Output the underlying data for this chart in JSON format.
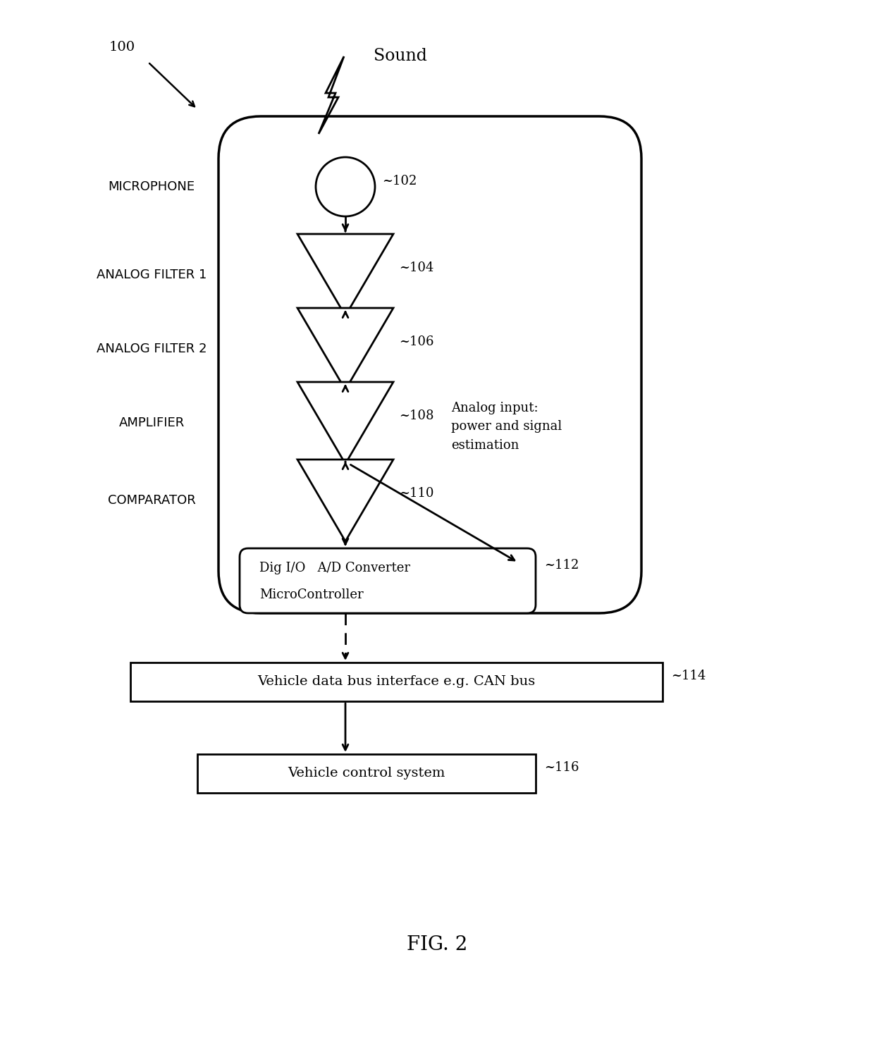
{
  "title": "FIG. 2",
  "background_color": "#ffffff",
  "fig_label": "100",
  "sound_label": "Sound",
  "box_112_label1": "Dig I/O   A/D Converter",
  "box_112_label2": "MicroController",
  "box_112_id": "~112",
  "box_114_label": "Vehicle data bus interface e.g. CAN bus",
  "box_114_id": "~114",
  "box_116_label": "Vehicle control system",
  "box_116_id": "~116",
  "analog_input_text": "Analog input:\npower and signal\nestimation",
  "ref_102": "~102",
  "ref_104": "~104",
  "ref_106": "~106",
  "ref_108": "~108",
  "ref_110": "~110",
  "label_microphone": "MICROPHONE",
  "label_af1": "ANALOG FILTER 1",
  "label_af2": "ANALOG FILTER 2",
  "label_amp": "AMPLIFIER",
  "label_comp": "COMPARATOR"
}
